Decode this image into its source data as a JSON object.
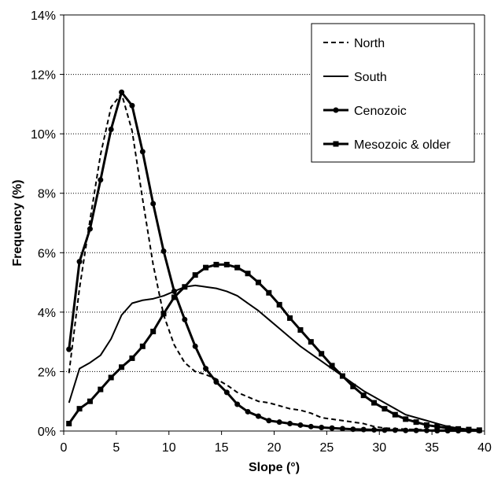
{
  "chart_data": {
    "type": "line",
    "title": "",
    "xlabel": "Slope (°)",
    "ylabel": "Frequency (%)",
    "xlim": [
      0,
      40
    ],
    "ylim": [
      0,
      14
    ],
    "xticks": [
      0,
      5,
      10,
      15,
      20,
      25,
      30,
      35,
      40
    ],
    "xtick_labels": [
      "0",
      "5",
      "10",
      "15",
      "20",
      "25",
      "30",
      "35",
      "40"
    ],
    "yticks": [
      0,
      2,
      4,
      6,
      8,
      10,
      12,
      14
    ],
    "ytick_labels": [
      "0%",
      "2%",
      "4%",
      "6%",
      "8%",
      "10%",
      "12%",
      "14%"
    ],
    "grid": "horizontal dotted",
    "legend_position": "top-right",
    "series": [
      {
        "name": "North",
        "style": "dashed",
        "marker": "none",
        "x": [
          0.5,
          1.5,
          2.5,
          3.5,
          4.5,
          5.5,
          6.5,
          7.5,
          8.5,
          9.5,
          10.5,
          11.5,
          12.5,
          13.5,
          14.5,
          15.5,
          16.5,
          17.5,
          18.5,
          19.5,
          20.5,
          21.5,
          22.5,
          23.5,
          24.5,
          25.5,
          26.5,
          27.5,
          28.5,
          29.5,
          30.5,
          31.5,
          32.5,
          33.5,
          34.5,
          35.5,
          36.5,
          37.5,
          38.5,
          39.5
        ],
        "values": [
          1.95,
          4.8,
          7.1,
          9.3,
          10.9,
          11.35,
          10.1,
          7.8,
          5.6,
          3.9,
          2.9,
          2.3,
          2.0,
          1.9,
          1.75,
          1.55,
          1.3,
          1.15,
          1.0,
          0.95,
          0.85,
          0.75,
          0.7,
          0.6,
          0.45,
          0.4,
          0.35,
          0.3,
          0.25,
          0.15,
          0.1,
          0.08,
          0.06,
          0.05,
          0.04,
          0.03,
          0.03,
          0.02,
          0.02,
          0.01
        ]
      },
      {
        "name": "South",
        "style": "solid",
        "marker": "none",
        "x": [
          0.5,
          1.5,
          2.5,
          3.5,
          4.5,
          5.5,
          6.5,
          7.5,
          8.5,
          9.5,
          10.5,
          11.5,
          12.5,
          13.5,
          14.5,
          15.5,
          16.5,
          17.5,
          18.5,
          19.5,
          20.5,
          21.5,
          22.5,
          23.5,
          24.5,
          25.5,
          26.5,
          27.5,
          28.5,
          29.5,
          30.5,
          31.5,
          32.5,
          33.5,
          34.5,
          35.5,
          36.5,
          37.5,
          38.5,
          39.5
        ],
        "values": [
          0.95,
          2.1,
          2.3,
          2.55,
          3.1,
          3.9,
          4.3,
          4.4,
          4.45,
          4.55,
          4.7,
          4.85,
          4.9,
          4.85,
          4.8,
          4.7,
          4.55,
          4.3,
          4.05,
          3.75,
          3.45,
          3.15,
          2.85,
          2.6,
          2.35,
          2.1,
          1.85,
          1.6,
          1.35,
          1.15,
          0.95,
          0.75,
          0.55,
          0.45,
          0.35,
          0.25,
          0.15,
          0.1,
          0.05,
          0.04
        ]
      },
      {
        "name": "Cenozoic",
        "style": "solid-bold",
        "marker": "circle",
        "x": [
          0.5,
          1.5,
          2.5,
          3.5,
          4.5,
          5.5,
          6.5,
          7.5,
          8.5,
          9.5,
          10.5,
          11.5,
          12.5,
          13.5,
          14.5,
          15.5,
          16.5,
          17.5,
          18.5,
          19.5,
          20.5,
          21.5,
          22.5,
          23.5,
          24.5,
          25.5,
          26.5,
          27.5,
          28.5,
          29.5,
          30.5,
          31.5,
          32.5,
          33.5,
          34.5,
          35.5,
          36.5,
          37.5,
          38.5,
          39.5
        ],
        "values": [
          2.75,
          5.7,
          6.8,
          8.45,
          10.15,
          11.4,
          10.95,
          9.4,
          7.65,
          6.05,
          4.7,
          3.75,
          2.85,
          2.1,
          1.65,
          1.3,
          0.9,
          0.65,
          0.5,
          0.35,
          0.3,
          0.25,
          0.2,
          0.15,
          0.12,
          0.1,
          0.08,
          0.06,
          0.05,
          0.04,
          0.03,
          0.03,
          0.02,
          0.02,
          0.02,
          0.01,
          0.01,
          0.01,
          0.01,
          0.01
        ]
      },
      {
        "name": "Mesozoic & older",
        "style": "solid-bold",
        "marker": "square",
        "x": [
          0.5,
          1.5,
          2.5,
          3.5,
          4.5,
          5.5,
          6.5,
          7.5,
          8.5,
          9.5,
          10.5,
          11.5,
          12.5,
          13.5,
          14.5,
          15.5,
          16.5,
          17.5,
          18.5,
          19.5,
          20.5,
          21.5,
          22.5,
          23.5,
          24.5,
          25.5,
          26.5,
          27.5,
          28.5,
          29.5,
          30.5,
          31.5,
          32.5,
          33.5,
          34.5,
          35.5,
          36.5,
          37.5,
          38.5,
          39.5
        ],
        "values": [
          0.25,
          0.75,
          1.0,
          1.4,
          1.8,
          2.15,
          2.45,
          2.85,
          3.35,
          3.95,
          4.5,
          4.85,
          5.25,
          5.5,
          5.6,
          5.6,
          5.5,
          5.3,
          5.0,
          4.65,
          4.25,
          3.8,
          3.4,
          3.0,
          2.6,
          2.2,
          1.85,
          1.5,
          1.2,
          0.95,
          0.75,
          0.55,
          0.4,
          0.3,
          0.2,
          0.15,
          0.1,
          0.07,
          0.05,
          0.03
        ]
      }
    ]
  }
}
